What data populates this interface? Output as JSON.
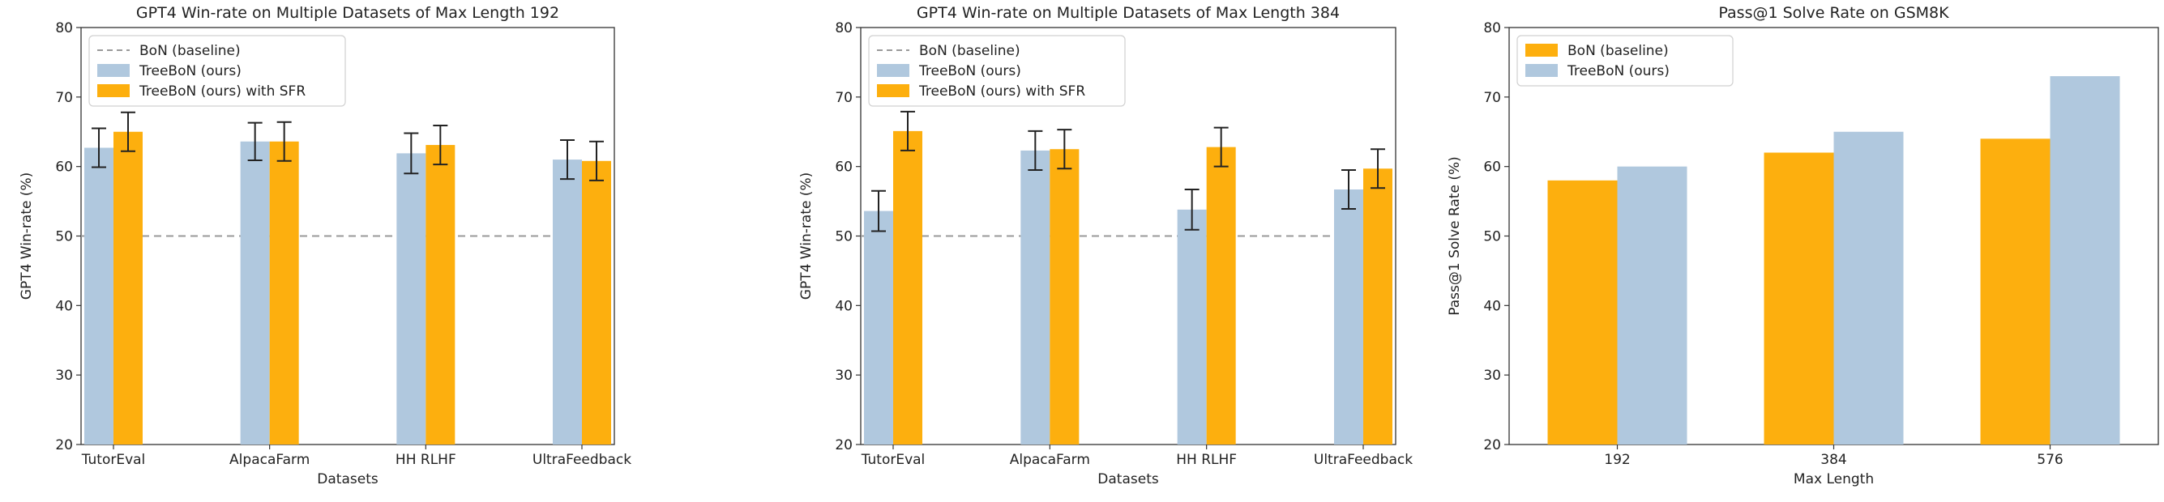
{
  "chart_data": [
    {
      "type": "bar",
      "title": "GPT4 Win-rate on Multiple Datasets of Max Length 192",
      "xlabel": "Datasets",
      "ylabel": "GPT4 Win-rate (%)",
      "ylim": [
        20,
        80
      ],
      "yticks": [
        20,
        30,
        40,
        50,
        60,
        70,
        80
      ],
      "categories": [
        "TutorEval",
        "AlpacaFarm",
        "HH RLHF",
        "UltraFeedback"
      ],
      "baseline": {
        "name": "BoN (baseline)",
        "value": 50,
        "color": "#999999",
        "style": "dashed"
      },
      "series": [
        {
          "name": "TreeBoN (ours)",
          "color": "#b0c8de",
          "values": [
            62.7,
            63.6,
            61.9,
            61.0
          ],
          "errors": [
            2.8,
            2.7,
            2.9,
            2.8
          ]
        },
        {
          "name": "TreeBoN (ours) with SFR",
          "color": "#fdaf0e",
          "values": [
            65.0,
            63.6,
            63.1,
            60.8
          ],
          "errors": [
            2.8,
            2.8,
            2.8,
            2.8
          ]
        }
      ],
      "legend": "top-left"
    },
    {
      "type": "bar",
      "title": "GPT4 Win-rate on Multiple Datasets of Max Length 384",
      "xlabel": "Datasets",
      "ylabel": "GPT4 Win-rate (%)",
      "ylim": [
        20,
        80
      ],
      "yticks": [
        20,
        30,
        40,
        50,
        60,
        70,
        80
      ],
      "categories": [
        "TutorEval",
        "AlpacaFarm",
        "HH RLHF",
        "UltraFeedback"
      ],
      "baseline": {
        "name": "BoN (baseline)",
        "value": 50,
        "color": "#999999",
        "style": "dashed"
      },
      "series": [
        {
          "name": "TreeBoN (ours)",
          "color": "#b0c8de",
          "values": [
            53.6,
            62.3,
            53.8,
            56.7
          ],
          "errors": [
            2.9,
            2.8,
            2.9,
            2.8
          ]
        },
        {
          "name": "TreeBoN (ours) with SFR",
          "color": "#fdaf0e",
          "values": [
            65.1,
            62.5,
            62.8,
            59.7
          ],
          "errors": [
            2.8,
            2.8,
            2.8,
            2.8
          ]
        }
      ],
      "legend": "top-left"
    },
    {
      "type": "bar",
      "title": "Pass@1 Solve Rate on GSM8K",
      "xlabel": "Max Length",
      "ylabel": "Pass@1 Solve Rate (%)",
      "ylim": [
        20,
        80
      ],
      "yticks": [
        20,
        30,
        40,
        50,
        60,
        70,
        80
      ],
      "categories": [
        "192",
        "384",
        "576"
      ],
      "series": [
        {
          "name": "BoN (baseline)",
          "color": "#fdaf0e",
          "values": [
            58,
            62,
            64
          ]
        },
        {
          "name": "TreeBoN (ours)",
          "color": "#b0c8de",
          "values": [
            60,
            65,
            73
          ]
        }
      ],
      "legend": "top-left"
    }
  ]
}
